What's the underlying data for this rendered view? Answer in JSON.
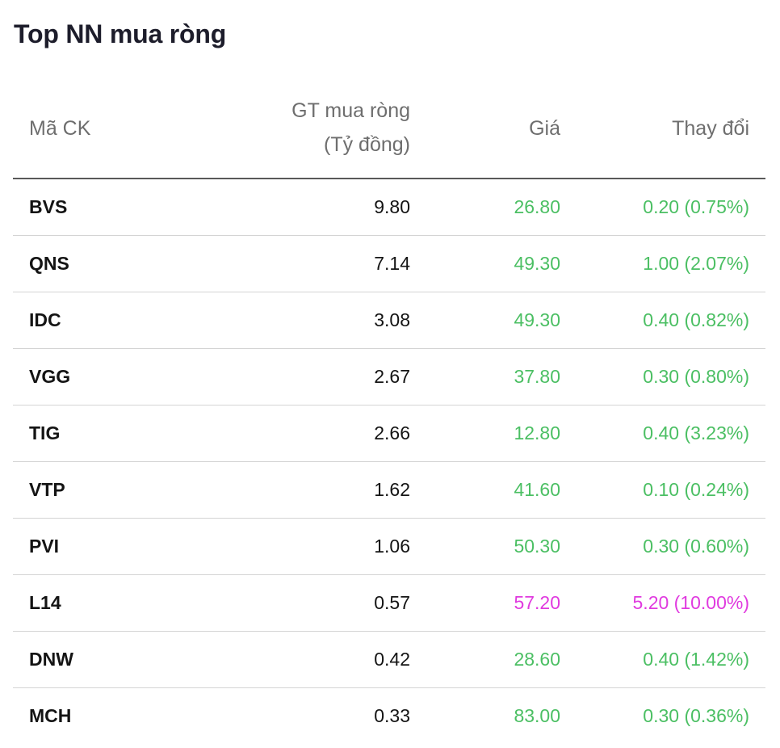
{
  "title": "Top NN mua ròng",
  "headers": {
    "symbol": "Mã CK",
    "value_line1": "GT mua ròng",
    "value_line2": "(Tỷ đồng)",
    "price": "Giá",
    "change": "Thay đổi"
  },
  "colors": {
    "up": "#4bbf63",
    "ceiling": "#e03adf"
  },
  "rows": [
    {
      "symbol": "BVS",
      "value": "9.80",
      "price": "26.80",
      "change": "0.20 (0.75%)",
      "status": "up"
    },
    {
      "symbol": "QNS",
      "value": "7.14",
      "price": "49.30",
      "change": "1.00 (2.07%)",
      "status": "up"
    },
    {
      "symbol": "IDC",
      "value": "3.08",
      "price": "49.30",
      "change": "0.40 (0.82%)",
      "status": "up"
    },
    {
      "symbol": "VGG",
      "value": "2.67",
      "price": "37.80",
      "change": "0.30 (0.80%)",
      "status": "up"
    },
    {
      "symbol": "TIG",
      "value": "2.66",
      "price": "12.80",
      "change": "0.40 (3.23%)",
      "status": "up"
    },
    {
      "symbol": "VTP",
      "value": "1.62",
      "price": "41.60",
      "change": "0.10 (0.24%)",
      "status": "up"
    },
    {
      "symbol": "PVI",
      "value": "1.06",
      "price": "50.30",
      "change": "0.30 (0.60%)",
      "status": "up"
    },
    {
      "symbol": "L14",
      "value": "0.57",
      "price": "57.20",
      "change": "5.20 (10.00%)",
      "status": "ceiling"
    },
    {
      "symbol": "DNW",
      "value": "0.42",
      "price": "28.60",
      "change": "0.40 (1.42%)",
      "status": "up"
    },
    {
      "symbol": "MCH",
      "value": "0.33",
      "price": "83.00",
      "change": "0.30 (0.36%)",
      "status": "up"
    }
  ]
}
